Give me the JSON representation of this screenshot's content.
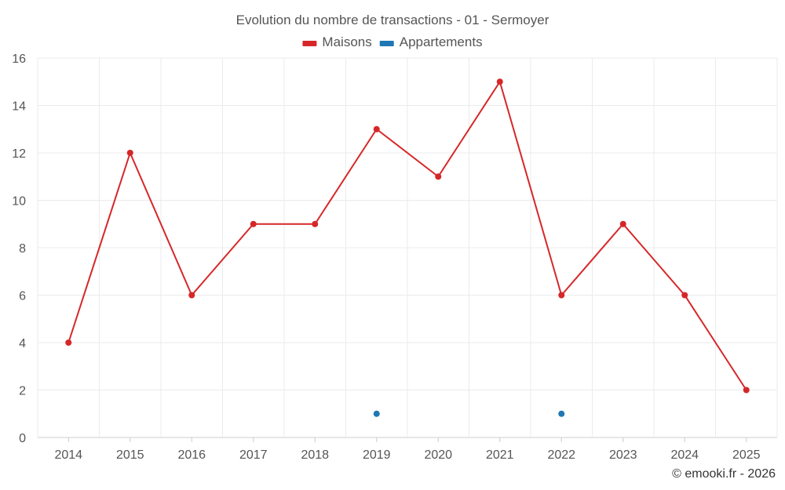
{
  "chart_data": {
    "type": "line",
    "title": "Evolution du nombre de transactions - 01 - Sermoyer",
    "categories": [
      "2014",
      "2015",
      "2016",
      "2017",
      "2018",
      "2019",
      "2020",
      "2021",
      "2022",
      "2023",
      "2024",
      "2025"
    ],
    "series": [
      {
        "name": "Maisons",
        "color": "#d62728",
        "values": [
          4,
          12,
          6,
          9,
          9,
          13,
          11,
          15,
          6,
          9,
          6,
          2
        ]
      },
      {
        "name": "Appartements",
        "color": "#1f77b4",
        "values": [
          null,
          null,
          null,
          null,
          null,
          1,
          null,
          null,
          1,
          null,
          null,
          null
        ]
      }
    ],
    "ylim": [
      0,
      16
    ],
    "yticks": [
      0,
      2,
      4,
      6,
      8,
      10,
      12,
      14,
      16
    ],
    "legend_position": "top-center",
    "grid": true,
    "xlabel": "",
    "ylabel": ""
  },
  "credit": "© emooki.fr - 2026"
}
